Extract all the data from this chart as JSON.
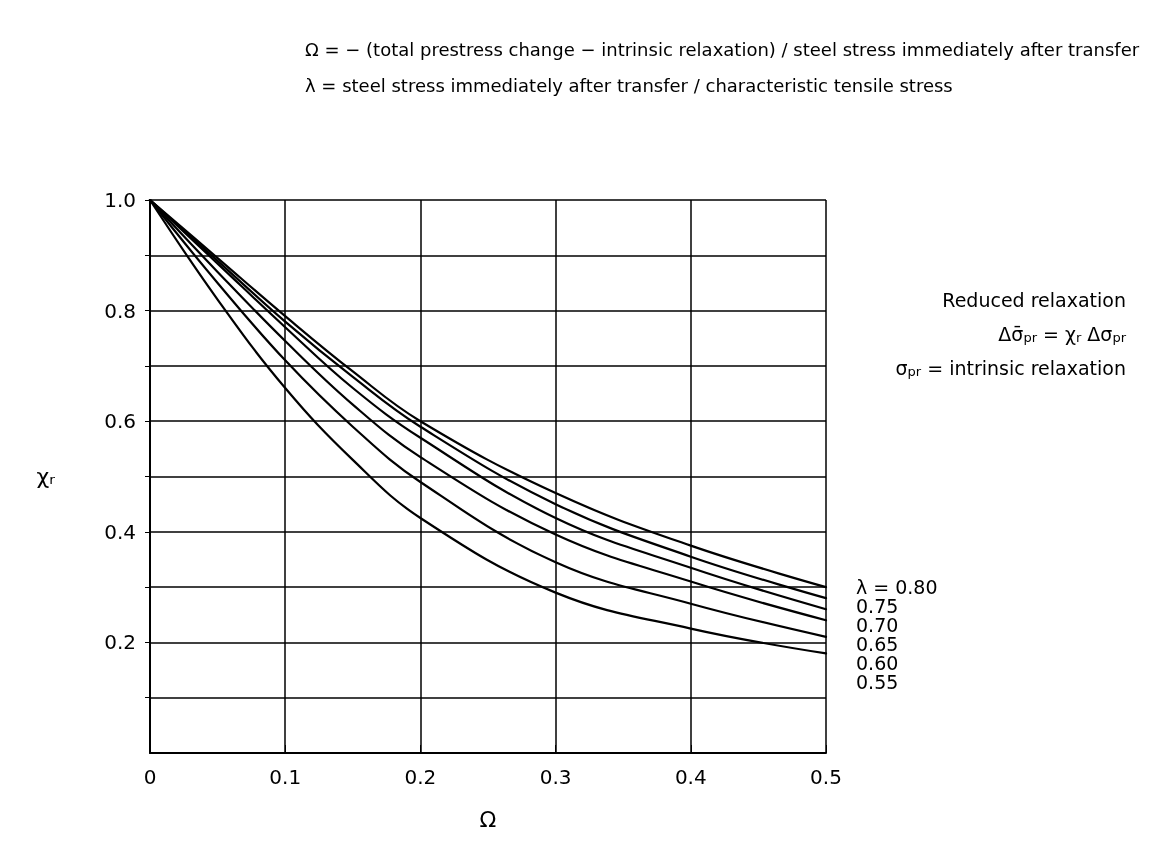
{
  "chart_data": {
    "type": "line",
    "title": "Ω = − (total prestress change − intrinsic relaxation) / steel stress immediately after transfer",
    "subtitle": "λ = steel stress immediately after transfer / characteristic tensile stress",
    "xlabel": "Ω",
    "ylabel": "χᵣ",
    "x": [
      0,
      0.05,
      0.1,
      0.15,
      0.2,
      0.3,
      0.4,
      0.5
    ],
    "series": [
      {
        "name": "λ = 0.80",
        "color": "#000000",
        "values": [
          1.0,
          0.895,
          0.79,
          0.69,
          0.6,
          0.47,
          0.375,
          0.3
        ]
      },
      {
        "name": "0.75",
        "color": "#000000",
        "values": [
          1.0,
          0.89,
          0.78,
          0.68,
          0.59,
          0.45,
          0.355,
          0.28
        ]
      },
      {
        "name": "0.70",
        "color": "#000000",
        "values": [
          1.0,
          0.885,
          0.77,
          0.66,
          0.57,
          0.425,
          0.335,
          0.26
        ]
      },
      {
        "name": "0.65",
        "color": "#000000",
        "values": [
          1.0,
          0.87,
          0.745,
          0.63,
          0.535,
          0.395,
          0.31,
          0.24
        ]
      },
      {
        "name": "0.60",
        "color": "#000000",
        "values": [
          1.0,
          0.85,
          0.71,
          0.59,
          0.49,
          0.345,
          0.27,
          0.21
        ]
      },
      {
        "name": "0.55",
        "color": "#000000",
        "values": [
          1.0,
          0.82,
          0.66,
          0.53,
          0.425,
          0.29,
          0.225,
          0.18
        ]
      }
    ],
    "xlim": [
      0,
      0.5
    ],
    "ylim": [
      0,
      1.0
    ],
    "xticks": [
      0,
      0.1,
      0.2,
      0.3,
      0.4,
      0.5
    ],
    "yticks": [
      {
        "value": 0.1,
        "label": null
      },
      0.2,
      {
        "value": 0.3,
        "label": null
      },
      0.4,
      {
        "value": 0.5,
        "label": null
      },
      0.6,
      {
        "value": 0.7,
        "label": null
      },
      0.8,
      {
        "value": 0.9,
        "label": null
      },
      {
        "value": 1,
        "label": "1.0"
      }
    ],
    "grid": true,
    "marker": "none",
    "line_style": "solid",
    "legend": false,
    "annotations": [
      "Reduced relaxation",
      "Δσ̄$_{pr}$ = χ$_{r}$ Δσ$_{pr}$",
      "σ$_{pr}$ = intrinsic relaxation"
    ]
  }
}
